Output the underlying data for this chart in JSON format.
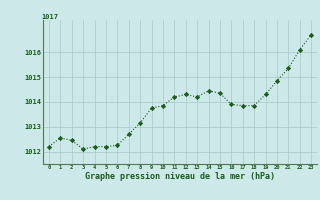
{
  "x": [
    0,
    1,
    2,
    3,
    4,
    5,
    6,
    7,
    8,
    9,
    10,
    11,
    12,
    13,
    14,
    15,
    16,
    17,
    18,
    19,
    20,
    21,
    22,
    23
  ],
  "y": [
    1012.2,
    1012.55,
    1012.45,
    1012.1,
    1012.2,
    1012.2,
    1012.25,
    1012.7,
    1013.15,
    1013.75,
    1013.85,
    1014.2,
    1014.3,
    1014.2,
    1014.45,
    1014.35,
    1013.9,
    1013.85,
    1013.85,
    1014.3,
    1014.85,
    1015.35,
    1016.1,
    1016.7
  ],
  "ylim": [
    1011.5,
    1017.3
  ],
  "xlim": [
    -0.5,
    23.5
  ],
  "yticks": [
    1012,
    1013,
    1014,
    1015,
    1016
  ],
  "xticks": [
    0,
    1,
    2,
    3,
    4,
    5,
    6,
    7,
    8,
    9,
    10,
    11,
    12,
    13,
    14,
    15,
    16,
    17,
    18,
    19,
    20,
    21,
    22,
    23
  ],
  "xlabel": "Graphe pression niveau de la mer (hPa)",
  "line_color": "#1a5c1a",
  "marker_color": "#1a5c1a",
  "bg_color": "#cce8e8",
  "grid_color": "#aac8c8",
  "top_label": "1017"
}
